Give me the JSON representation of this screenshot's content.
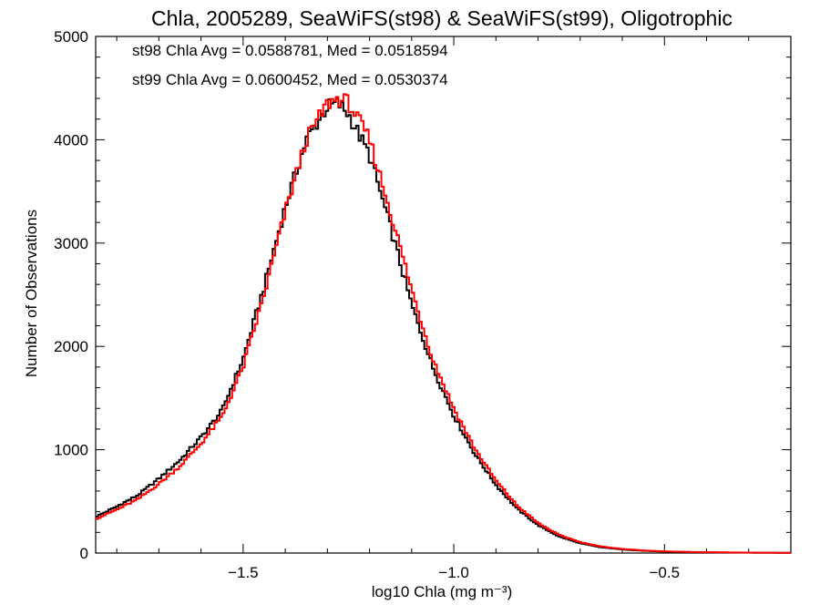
{
  "chart_data": {
    "type": "line",
    "title": "Chla, 2005289, SeaWiFS(st98) & SeaWiFS(st99), Oligotrophic",
    "xlabel": "log10 Chla (mg m⁻³)",
    "ylabel": "Number of Observations",
    "xlim": [
      -1.85,
      -0.2
    ],
    "ylim": [
      0,
      5000
    ],
    "x_ticks": [
      -1.5,
      -1.0,
      -0.5
    ],
    "x_tick_labels": [
      "−1.5",
      "−1.0",
      "−0.5"
    ],
    "y_ticks": [
      0,
      1000,
      2000,
      3000,
      4000,
      5000
    ],
    "y_tick_labels": [
      "0",
      "1000",
      "2000",
      "3000",
      "4000",
      "5000"
    ],
    "grid": false,
    "annotations": [
      {
        "text": "st98 Chla Avg = 0.0588781, Med = 0.0518594",
        "color": "#000000"
      },
      {
        "text": "st99 Chla Avg = 0.0600452, Med = 0.0530374",
        "color": "#ff0000"
      }
    ],
    "x": [
      -1.85,
      -1.8,
      -1.75,
      -1.7,
      -1.65,
      -1.6,
      -1.55,
      -1.5,
      -1.45,
      -1.4,
      -1.35,
      -1.3,
      -1.275,
      -1.25,
      -1.2,
      -1.15,
      -1.1,
      -1.05,
      -1.0,
      -0.95,
      -0.9,
      -0.85,
      -0.8,
      -0.75,
      -0.7,
      -0.65,
      -0.6,
      -0.55,
      -0.5,
      -0.45,
      -0.4,
      -0.35,
      -0.3,
      -0.25,
      -0.2
    ],
    "series": [
      {
        "color": "#000000",
        "values": [
          350,
          450,
          560,
          720,
          900,
          1120,
          1380,
          1880,
          2580,
          3350,
          4000,
          4320,
          4350,
          4250,
          3850,
          3150,
          2400,
          1800,
          1330,
          960,
          660,
          430,
          270,
          160,
          95,
          55,
          35,
          22,
          14,
          10,
          7,
          5,
          4,
          3,
          2
        ]
      },
      {
        "color": "#ff0000",
        "values": [
          330,
          420,
          520,
          670,
          840,
          1060,
          1320,
          1800,
          2500,
          3300,
          4000,
          4350,
          4400,
          4360,
          4000,
          3300,
          2550,
          1880,
          1400,
          1010,
          700,
          460,
          290,
          175,
          105,
          62,
          40,
          25,
          16,
          11,
          8,
          6,
          4,
          3,
          2
        ]
      }
    ]
  }
}
